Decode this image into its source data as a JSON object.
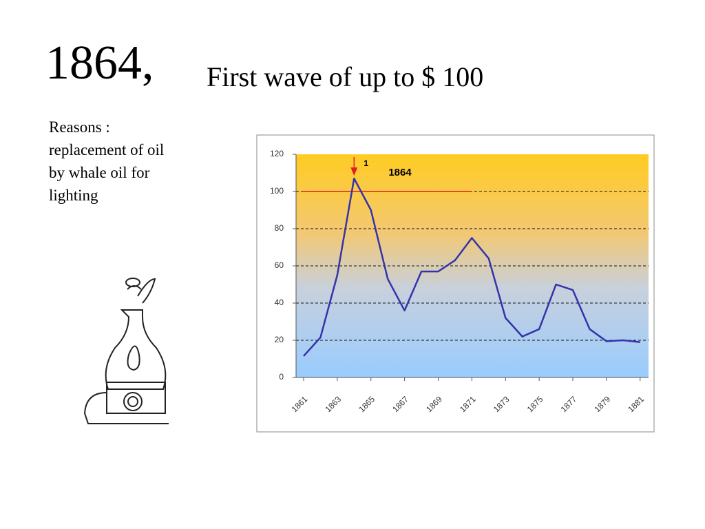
{
  "slide": {
    "title_year": "1864,",
    "title_rest": "First wave of up to $ 100",
    "reasons": [
      "Reasons :",
      "replacement of oil",
      "by whale oil for",
      "lighting"
    ]
  },
  "chart_data": {
    "type": "line",
    "x": [
      1861,
      1862,
      1863,
      1864,
      1865,
      1866,
      1867,
      1868,
      1869,
      1870,
      1871,
      1872,
      1873,
      1874,
      1875,
      1876,
      1877,
      1878,
      1879,
      1880,
      1881
    ],
    "values": [
      11.5,
      21.5,
      55,
      107,
      90,
      53,
      36,
      57,
      57,
      63,
      75,
      64,
      32,
      22,
      26,
      50,
      47,
      26,
      19.5,
      20,
      19
    ],
    "color": "#3333aa",
    "xlim": [
      1860.55,
      1881.5
    ],
    "xticks": [
      1861,
      1863,
      1865,
      1867,
      1869,
      1871,
      1873,
      1875,
      1877,
      1879,
      1881
    ],
    "ylim": [
      0,
      120
    ],
    "yticks": [
      0,
      20,
      40,
      60,
      80,
      100,
      120
    ],
    "grid": true,
    "reference_line": {
      "value": 100,
      "x_end": 1871,
      "color": "#e02020"
    },
    "annotations": [
      {
        "text": "1",
        "x": 1864,
        "color": "#e02020"
      },
      {
        "text": "1864"
      }
    ]
  }
}
